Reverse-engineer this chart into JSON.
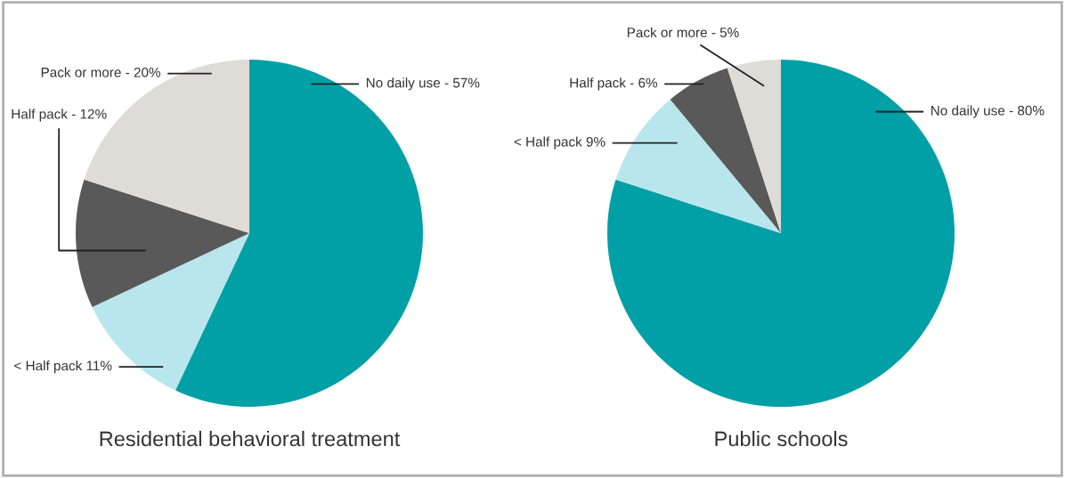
{
  "chart_data": [
    {
      "type": "pie",
      "title": "Residential behavioral treatment",
      "categories": [
        "No daily use - 57%",
        "< Half pack 11%",
        "Half pack - 12%",
        "Pack or more - 20%"
      ],
      "values": [
        57,
        11,
        12,
        20
      ],
      "colors": [
        "#00a0a6",
        "#b9e6ec",
        "#595959",
        "#dedcd7"
      ]
    },
    {
      "type": "pie",
      "title": "Public schools",
      "categories": [
        "No daily use - 80%",
        "< Half pack 9%",
        "Half pack - 6%",
        "Pack or more - 5%"
      ],
      "values": [
        80,
        9,
        6,
        5
      ],
      "colors": [
        "#00a0a6",
        "#b9e6ec",
        "#595959",
        "#dedcd7"
      ]
    }
  ]
}
